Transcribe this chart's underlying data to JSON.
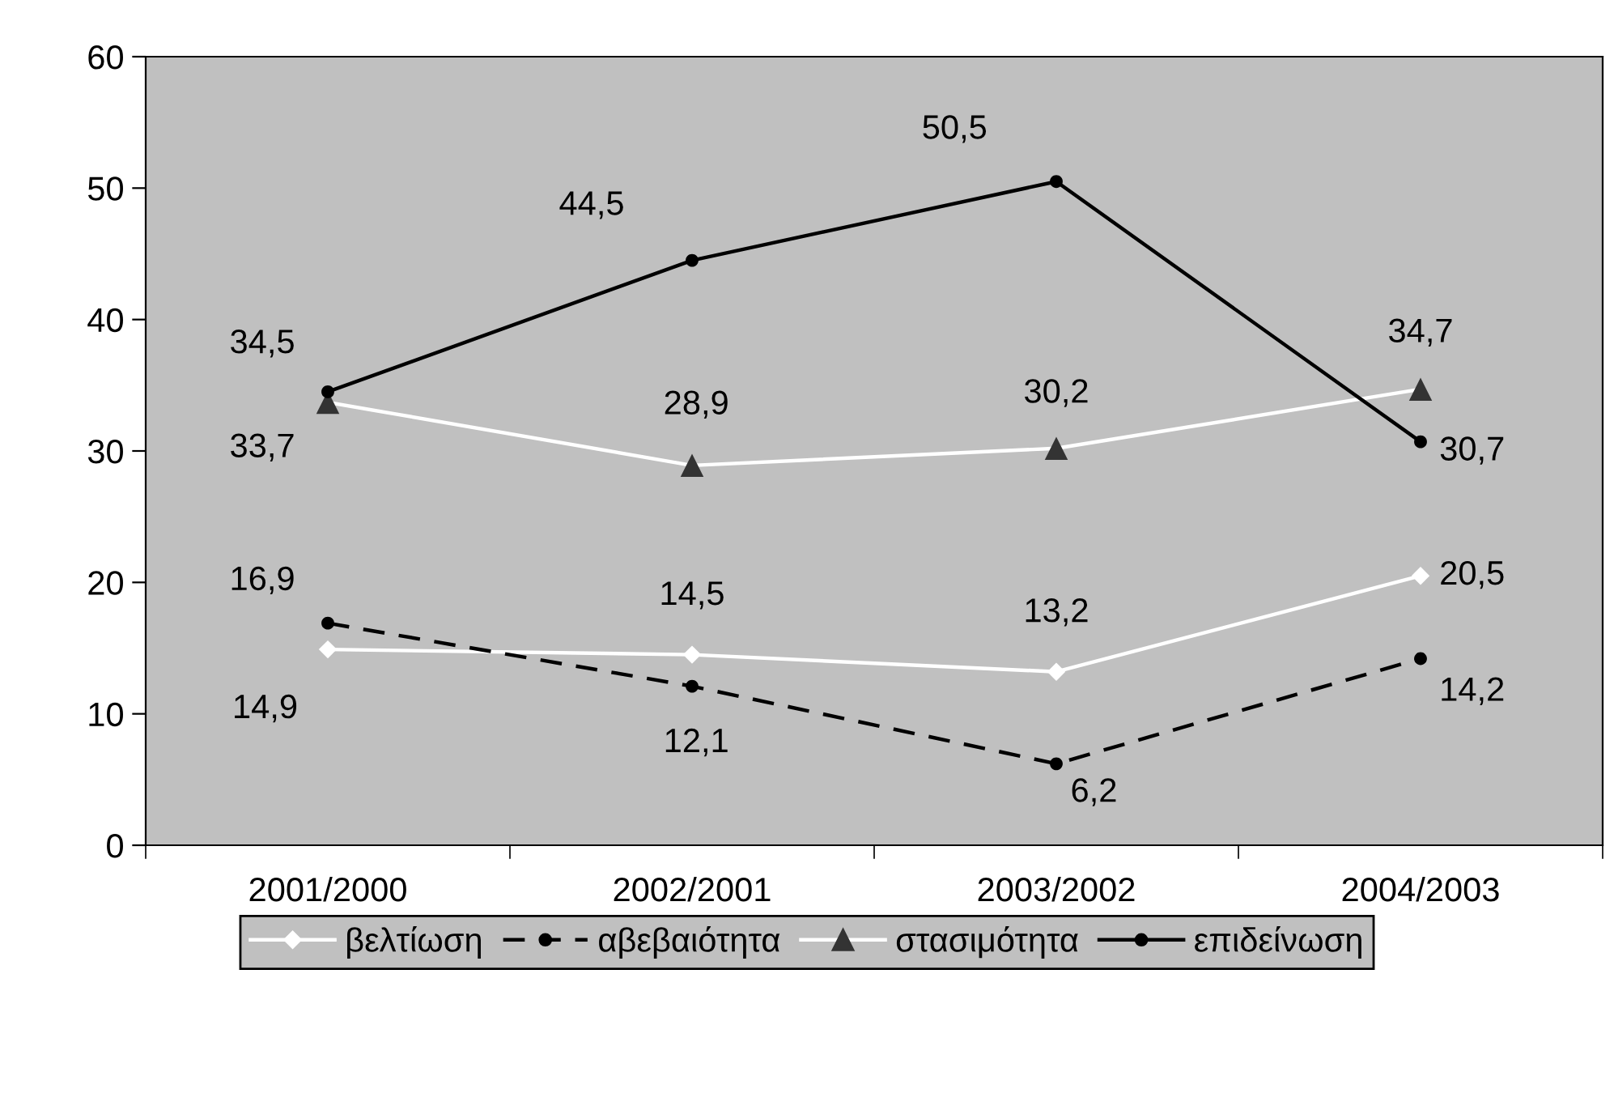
{
  "chart_data": {
    "type": "line",
    "categories": [
      "2001/2000",
      "2002/2001",
      "2003/2002",
      "2004/2003"
    ],
    "series": [
      {
        "name": "βελτίωση",
        "color": "#ffffff",
        "marker": "diamond",
        "line_style": "solid",
        "values": [
          14.9,
          14.5,
          13.2,
          20.5
        ],
        "value_labels": [
          "14,9",
          "14,5",
          "13,2",
          "20,5"
        ]
      },
      {
        "name": "αβεβαιότητα",
        "color": "#000000",
        "marker": "circle",
        "line_style": "dashed",
        "values": [
          16.9,
          12.1,
          6.2,
          14.2
        ],
        "value_labels": [
          "16,9",
          "12,1",
          "6,2",
          "14,2"
        ]
      },
      {
        "name": "στασιμότητα",
        "color": "#ffffff",
        "colors": [
          "#333333",
          "#333333",
          "#333333",
          "#333333"
        ],
        "marker": "triangle",
        "line_style": "solid",
        "values": [
          33.7,
          28.9,
          30.2,
          34.7
        ],
        "value_labels": [
          "33,7",
          "28,9",
          "30,2",
          "34,7"
        ]
      },
      {
        "name": "επιδείνωση",
        "color": "#000000",
        "marker": "circle",
        "line_style": "solid",
        "values": [
          34.5,
          44.5,
          50.5,
          30.7
        ],
        "value_labels": [
          "34,5",
          "44,5",
          "50,5",
          "30,7"
        ]
      }
    ],
    "ylim": [
      0,
      60
    ],
    "yticks": [
      0,
      10,
      20,
      30,
      40,
      50,
      60
    ],
    "grid": false,
    "legend": "bottom"
  }
}
